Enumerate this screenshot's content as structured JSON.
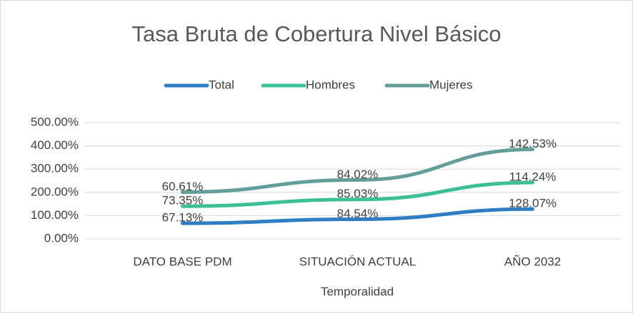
{
  "chart_data": {
    "type": "line",
    "stacked": true,
    "title": "Tasa Bruta de Cobertura Nivel Básico",
    "x_label": "Temporalidad",
    "categories": [
      "DATO BASE PDM",
      "SITUACIÓN ACTUAL",
      "AÑO 2032"
    ],
    "series": [
      {
        "name": "Total",
        "color": "#2f7ec4",
        "values": [
          67.13,
          84.54,
          128.07
        ],
        "value_labels": [
          "67.13%",
          "84.54%",
          "128.07%"
        ]
      },
      {
        "name": "Hombres",
        "color": "#3cbf96",
        "values": [
          73.35,
          85.03,
          114.24
        ],
        "value_labels": [
          "73.35%",
          "85.03%",
          "114.24%"
        ]
      },
      {
        "name": "Mujeres",
        "color": "#639e9c",
        "values": [
          60.61,
          84.02,
          142.53
        ],
        "value_labels": [
          "60.61%",
          "84.02%",
          "142.53%"
        ]
      }
    ],
    "ylim": [
      0,
      500
    ],
    "yticks": [
      {
        "value": 0,
        "label": "0.00%"
      },
      {
        "value": 100,
        "label": "100.00%"
      },
      {
        "value": 200,
        "label": "200.00%"
      },
      {
        "value": 300,
        "label": "300.00%"
      },
      {
        "value": 400,
        "label": "400.00%"
      },
      {
        "value": 500,
        "label": "500.00%"
      }
    ],
    "grid": true,
    "legend": "top"
  }
}
